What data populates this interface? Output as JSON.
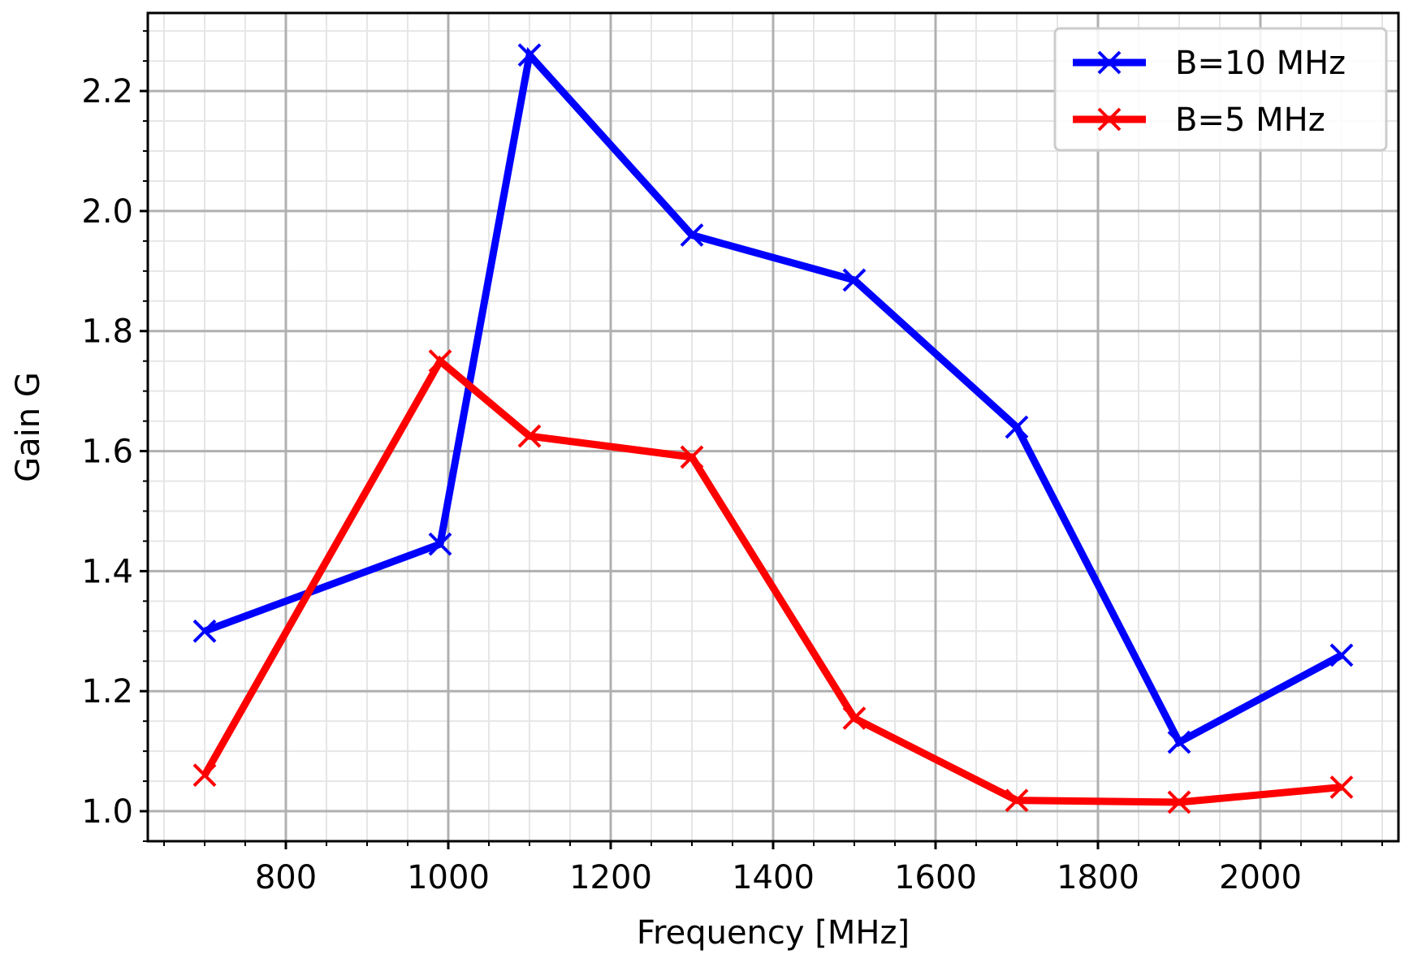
{
  "chart_data": {
    "type": "line",
    "title": "",
    "xlabel": "Frequency [MHz]",
    "ylabel": "Gain G",
    "xlim": [
      630,
      2170
    ],
    "ylim": [
      0.95,
      2.33
    ],
    "xticks": [
      800,
      1000,
      1200,
      1400,
      1600,
      1800,
      2000
    ],
    "xtick_labels": [
      "800",
      "1000",
      "1200",
      "1400",
      "1600",
      "1800",
      "2000"
    ],
    "yticks": [
      1.0,
      1.2,
      1.4,
      1.6,
      1.8,
      2.0,
      2.2
    ],
    "ytick_labels": [
      "1.0",
      "1.2",
      "1.4",
      "1.6",
      "1.8",
      "2.0",
      "2.2"
    ],
    "grid": true,
    "minor_grid": true,
    "legend_position": "top-right",
    "series": [
      {
        "name": "B=10 MHz",
        "color": "#0000ff",
        "marker": "x",
        "x": [
          700,
          990,
          1100,
          1300,
          1500,
          1700,
          1900,
          2100
        ],
        "y": [
          1.3,
          1.445,
          2.26,
          1.96,
          1.885,
          1.64,
          1.115,
          1.26
        ]
      },
      {
        "name": "B=5 MHz",
        "color": "#ff0000",
        "marker": "x",
        "x": [
          700,
          990,
          1100,
          1300,
          1500,
          1700,
          1900,
          2100
        ],
        "y": [
          1.06,
          1.75,
          1.625,
          1.59,
          1.155,
          1.018,
          1.015,
          1.04
        ]
      }
    ]
  }
}
